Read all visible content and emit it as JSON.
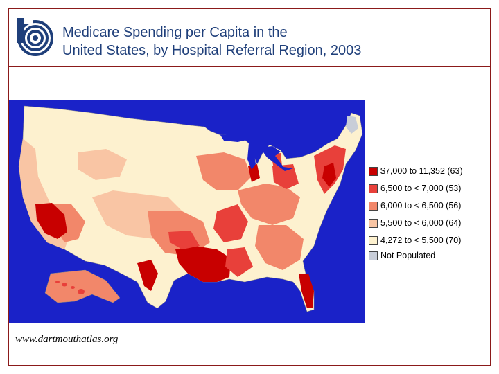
{
  "title": {
    "line1": "Medicare Spending per Capita in the",
    "line2": "United States, by Hospital Referral Region, 2003"
  },
  "logo": {
    "icon": "dartmouth-atlas-logo-icon",
    "color": "#1f3f7a"
  },
  "map": {
    "ocean_color": "#1a22c8",
    "region": "United States hospital referral regions"
  },
  "legend": {
    "items": [
      {
        "label": "$7,000 to 11,352 (63)",
        "color": "#c80000"
      },
      {
        "label": "6,500 to < 7,000 (53)",
        "color": "#e8403a"
      },
      {
        "label": "6,000 to < 6,500 (56)",
        "color": "#f2876a"
      },
      {
        "label": "5,500 to < 6,000 (64)",
        "color": "#f9c5a4"
      },
      {
        "label": "4,272 to < 5,500 (70)",
        "color": "#fdf1cf"
      },
      {
        "label": "Not Populated",
        "color": "#c8cdd8"
      }
    ]
  },
  "footer": {
    "url": "www.dartmouthatlas.org"
  }
}
